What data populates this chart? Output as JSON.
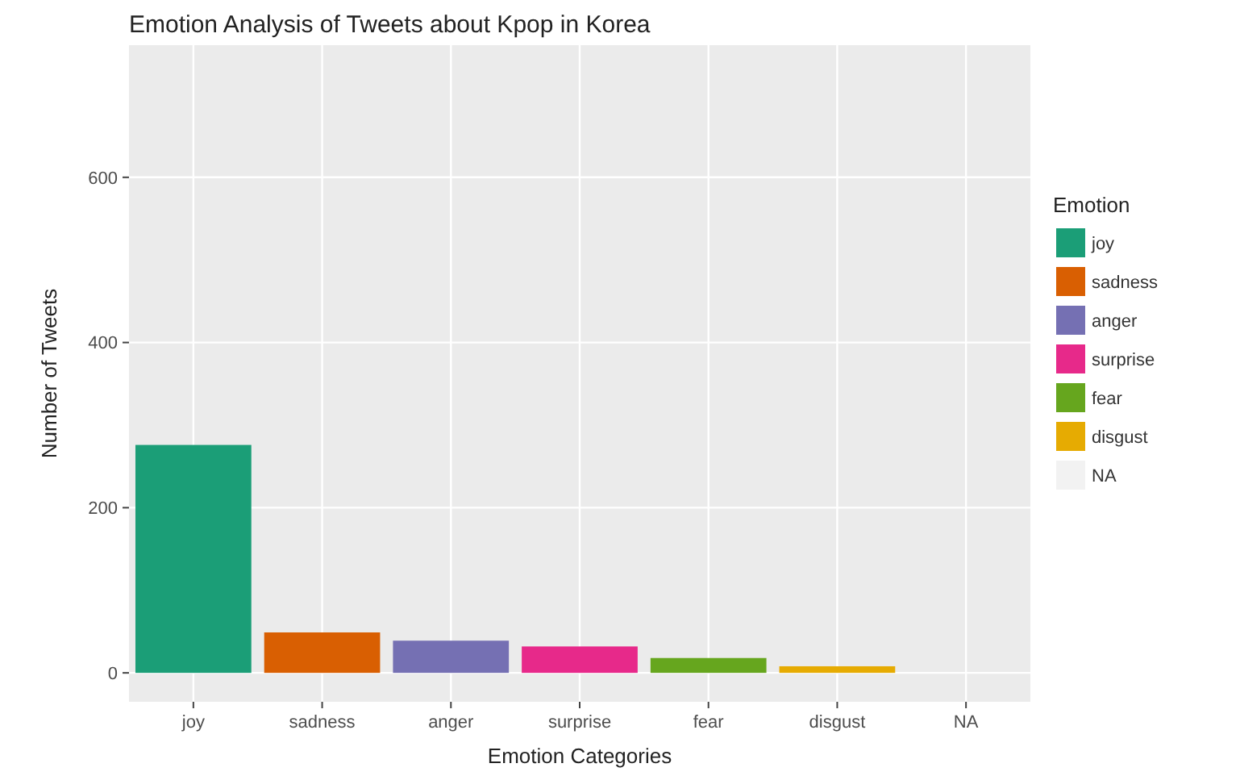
{
  "chart_data": {
    "type": "bar",
    "title": "Emotion Analysis of Tweets about Kpop in Korea",
    "xlabel": "Emotion Categories",
    "ylabel": "Number of Tweets",
    "legend_title": "Emotion",
    "legend": "right",
    "grid": true,
    "stacked": true,
    "categories": [
      "joy",
      "sadness",
      "anger",
      "surprise",
      "fear",
      "disgust",
      "NA"
    ],
    "series": [
      {
        "name": "joy",
        "color": "#1b9e77",
        "values": [
          276,
          null,
          null,
          null,
          null,
          null,
          null
        ]
      },
      {
        "name": "sadness",
        "color": "#d95f02",
        "values": [
          null,
          49,
          null,
          null,
          null,
          null,
          null
        ]
      },
      {
        "name": "anger",
        "color": "#7570b3",
        "values": [
          null,
          null,
          39,
          null,
          null,
          null,
          null
        ]
      },
      {
        "name": "surprise",
        "color": "#e7298a",
        "values": [
          null,
          null,
          null,
          32,
          null,
          null,
          null
        ]
      },
      {
        "name": "fear",
        "color": "#66a61e",
        "values": [
          null,
          null,
          null,
          null,
          18,
          null,
          null
        ]
      },
      {
        "name": "disgust",
        "color": "#e6ab02",
        "values": [
          null,
          null,
          null,
          null,
          null,
          8,
          null
        ]
      },
      {
        "name": "NA",
        "color": "#f2f2f2",
        "values": [
          null,
          null,
          null,
          null,
          null,
          null,
          null
        ]
      }
    ],
    "ylim": [
      -35,
      760
    ],
    "yticks": [
      0,
      200,
      400,
      600
    ]
  }
}
